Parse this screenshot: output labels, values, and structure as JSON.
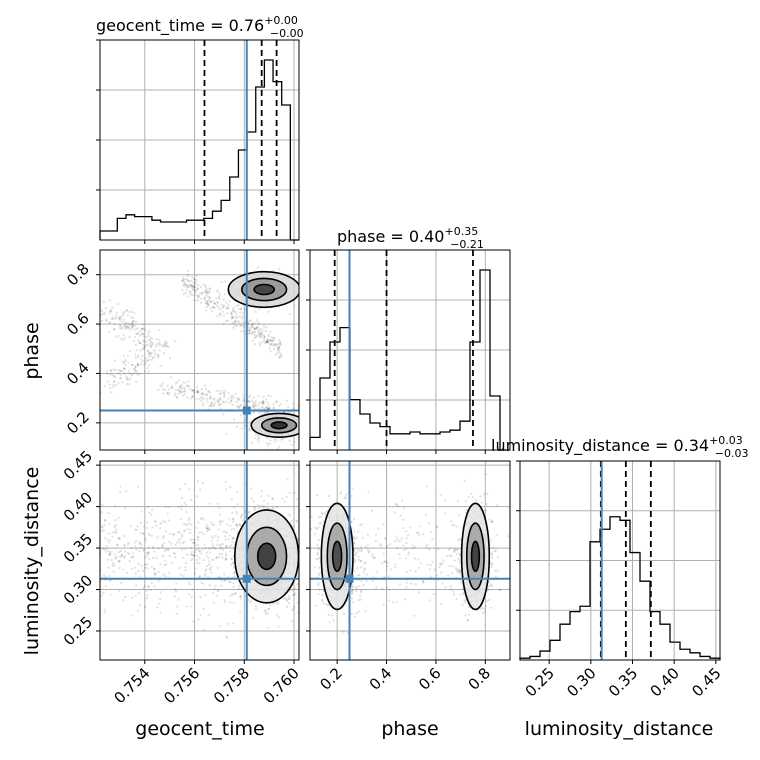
{
  "chart_data": {
    "type": "corner",
    "parameters": [
      "geocent_time",
      "phase",
      "luminosity_distance"
    ],
    "ranges": {
      "geocent_time": [
        0.7522,
        0.7602
      ],
      "phase": [
        0.09,
        0.9
      ],
      "luminosity_distance": [
        0.215,
        0.455
      ]
    },
    "truths": {
      "geocent_time": 0.7581,
      "phase": 0.25,
      "luminosity_distance": 0.313
    },
    "titles": [
      {
        "name": "geocent_time",
        "median": "0.76",
        "plus": "+0.00",
        "minus": "−0.00"
      },
      {
        "name": "phase",
        "median": "0.40",
        "plus": "+0.35",
        "minus": "−0.21"
      },
      {
        "name": "luminosity_distance",
        "median": "0.34",
        "plus": "+0.03",
        "minus": "−0.03"
      }
    ],
    "quantiles": {
      "geocent_time": [
        0.7564,
        0.7587,
        0.7593
      ],
      "phase": [
        0.19,
        0.4,
        0.75
      ],
      "luminosity_distance": [
        0.312,
        0.342,
        0.372
      ]
    },
    "ticks": {
      "geocent_time": [
        "0.754",
        "0.756",
        "0.758",
        "0.760"
      ],
      "phase": [
        "0.2",
        "0.4",
        "0.6",
        "0.8"
      ],
      "phase_y": [
        "0.2",
        "0.4",
        "0.6",
        "0.8"
      ],
      "luminosity_distance": [
        "0.25",
        "0.30",
        "0.35",
        "0.40",
        "0.45"
      ],
      "luminosity_distance_y": [
        "0.25",
        "0.30",
        "0.35",
        "0.40",
        "0.45"
      ]
    },
    "histograms": {
      "geocent_time": [
        0.05,
        0.05,
        0.12,
        0.14,
        0.13,
        0.13,
        0.11,
        0.1,
        0.1,
        0.1,
        0.11,
        0.11,
        0.12,
        0.16,
        0.22,
        0.35,
        0.5,
        0.6,
        0.85,
        1.0,
        0.88,
        0.75,
        0.0
      ],
      "phase": [
        0.07,
        0.4,
        0.6,
        0.68,
        0.28,
        0.2,
        0.15,
        0.13,
        0.09,
        0.09,
        0.1,
        0.09,
        0.09,
        0.1,
        0.11,
        0.16,
        0.6,
        1.0,
        0.3,
        0.0
      ],
      "luminosity_distance": [
        0.01,
        0.02,
        0.05,
        0.11,
        0.2,
        0.27,
        0.3,
        0.66,
        0.73,
        0.8,
        0.78,
        0.6,
        0.44,
        0.27,
        0.2,
        0.1,
        0.06,
        0.04,
        0.02,
        0.01
      ]
    }
  }
}
